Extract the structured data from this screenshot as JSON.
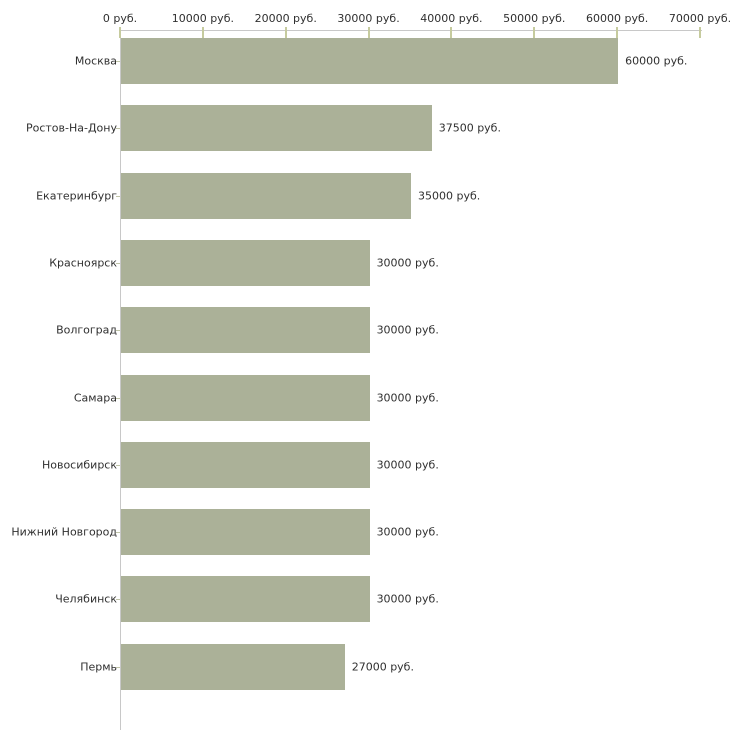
{
  "chart_data": {
    "type": "bar",
    "orientation": "horizontal",
    "title": "",
    "xlabel": "",
    "ylabel": "",
    "unit_suffix": " руб.",
    "categories": [
      "Москва",
      "Ростов-На-Дону",
      "Екатеринбург",
      "Красноярск",
      "Волгоград",
      "Самара",
      "Новосибирск",
      "Нижний Новгород",
      "Челябинск",
      "Пермь"
    ],
    "values": [
      60000,
      37500,
      35000,
      30000,
      30000,
      30000,
      30000,
      30000,
      30000,
      27000
    ],
    "value_labels": [
      "60000 руб.",
      "37500 руб.",
      "35000 руб.",
      "30000 руб.",
      "30000 руб.",
      "30000 руб.",
      "30000 руб.",
      "30000 руб.",
      "30000 руб.",
      "27000 руб."
    ],
    "x_ticks": [
      0,
      10000,
      20000,
      30000,
      40000,
      50000,
      60000,
      70000
    ],
    "x_tick_labels": [
      "0 руб.",
      "10000 руб.",
      "20000 руб.",
      "30000 руб.",
      "40000 руб.",
      "50000 руб.",
      "60000 руб.",
      "70000 руб."
    ],
    "xlim": [
      0,
      70000
    ],
    "axis_position": "top",
    "grid": false,
    "legend": false,
    "colors": {
      "bar_fill": "#abb198",
      "axis_line": "#c8c8c8",
      "tick_mark": "#c6cb9e",
      "text": "#303030",
      "background": "#ffffff"
    }
  }
}
